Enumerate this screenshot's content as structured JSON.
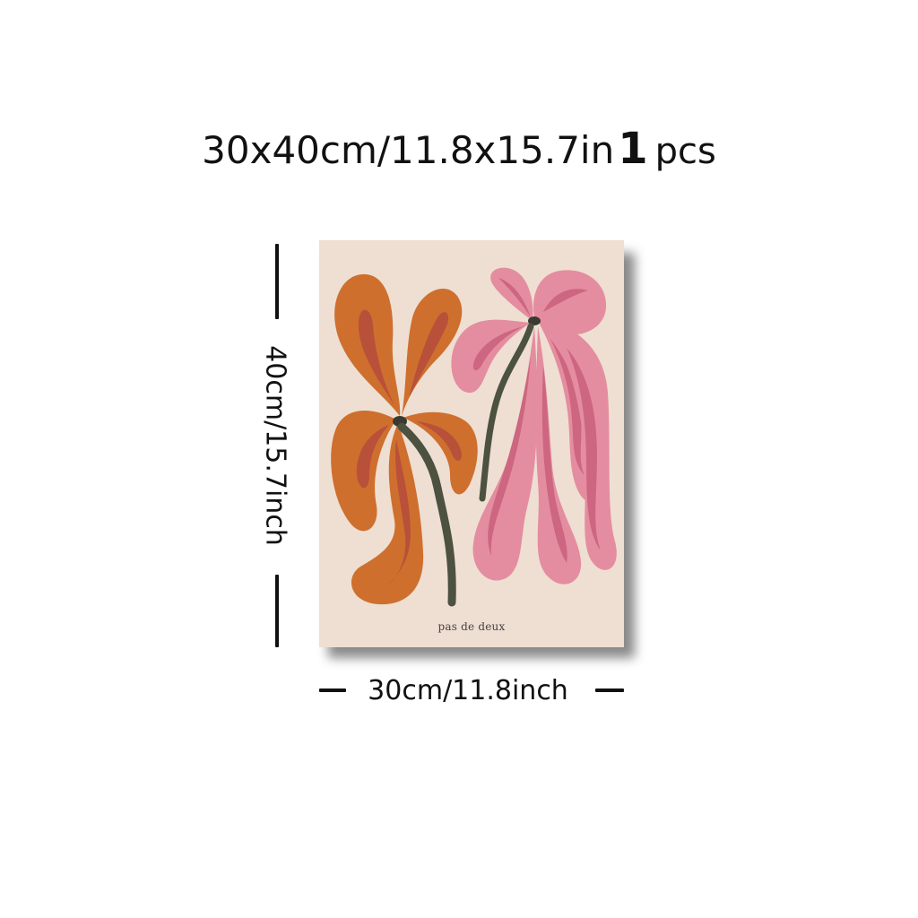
{
  "headline": {
    "size_text": "30x40cm/11.8x15.7in",
    "quantity": "1",
    "unit": "pcs"
  },
  "poster": {
    "caption": "pas de deux",
    "background_color": "#eedfd2",
    "colors": {
      "orange_petal": "#cf6f2e",
      "orange_vein": "#b9503a",
      "pink_petal": "#e58da0",
      "pink_vein": "#cd6680",
      "stem": "#4c5140"
    }
  },
  "dimensions": {
    "height_label": "40cm/15.7inch",
    "width_label": "30cm/11.8inch"
  }
}
